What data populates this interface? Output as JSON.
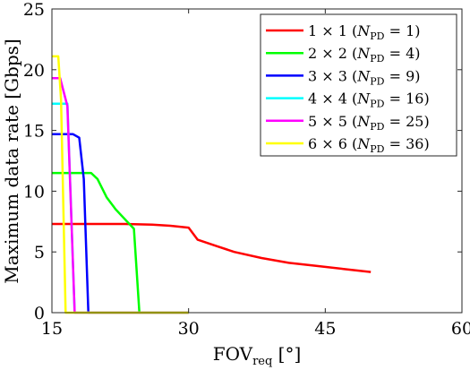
{
  "chart_data": {
    "type": "line",
    "xlabel": "FOV",
    "xlabel_sub": "req",
    "xlabel_unit": "[°]",
    "ylabel": "Maximum data rate [Gbps]",
    "xlim": [
      15,
      60
    ],
    "ylim": [
      0,
      25
    ],
    "xticks": [
      15,
      30,
      45,
      60
    ],
    "yticks": [
      0,
      5,
      10,
      15,
      20,
      25
    ],
    "grid": false,
    "legend_position": "top-right",
    "series": [
      {
        "name": "1 × 1 (N_PD = 1)",
        "label_main": "1 × 1 (",
        "label_sub": "PD",
        "label_tail": " = 1)",
        "color": "#ff0000",
        "x": [
          15,
          23,
          26,
          28,
          30,
          31,
          33,
          35,
          38,
          41,
          44,
          47,
          50
        ],
        "y": [
          7.3,
          7.3,
          7.25,
          7.15,
          7.0,
          6.0,
          5.5,
          5.0,
          4.5,
          4.1,
          3.85,
          3.6,
          3.35
        ]
      },
      {
        "name": "2 × 2 (N_PD = 4)",
        "label_main": "2 × 2 (",
        "label_sub": "PD",
        "label_tail": " = 4)",
        "color": "#00ff00",
        "x": [
          15,
          19.3,
          20,
          21,
          22,
          23.5,
          24,
          24.6,
          30
        ],
        "y": [
          11.5,
          11.5,
          11.0,
          9.5,
          8.5,
          7.3,
          6.9,
          0,
          0
        ]
      },
      {
        "name": "3 × 3 (N_PD = 9)",
        "label_main": "3 × 3 (",
        "label_sub": "PD",
        "label_tail": " = 9)",
        "color": "#0000ff",
        "x": [
          15,
          17.3,
          18.0,
          18.5,
          19.0,
          30
        ],
        "y": [
          14.7,
          14.7,
          14.4,
          11.0,
          0,
          0
        ]
      },
      {
        "name": "4 × 4 (N_PD = 16)",
        "label_main": "4 × 4 (",
        "label_sub": "PD",
        "label_tail": " = 16)",
        "color": "#00ffff",
        "x": [
          15,
          16.7,
          17.5,
          30
        ],
        "y": [
          17.2,
          17.2,
          0,
          0
        ]
      },
      {
        "name": "5 × 5 (N_PD = 25)",
        "label_main": "5 × 5 (",
        "label_sub": "PD",
        "label_tail": " = 25)",
        "color": "#ff00ff",
        "x": [
          15,
          15.9,
          16.7,
          17.0,
          17.5,
          30
        ],
        "y": [
          19.3,
          19.3,
          17.0,
          10.5,
          0,
          0
        ]
      },
      {
        "name": "6 × 6 (N_PD = 36)",
        "label_main": "6 × 6 (",
        "label_sub": "PD",
        "label_tail": " = 36)",
        "color": "#ffff00",
        "x": [
          15,
          15.7,
          16.0,
          16.5,
          30
        ],
        "y": [
          21.1,
          21.1,
          17.5,
          0,
          0
        ]
      }
    ]
  }
}
